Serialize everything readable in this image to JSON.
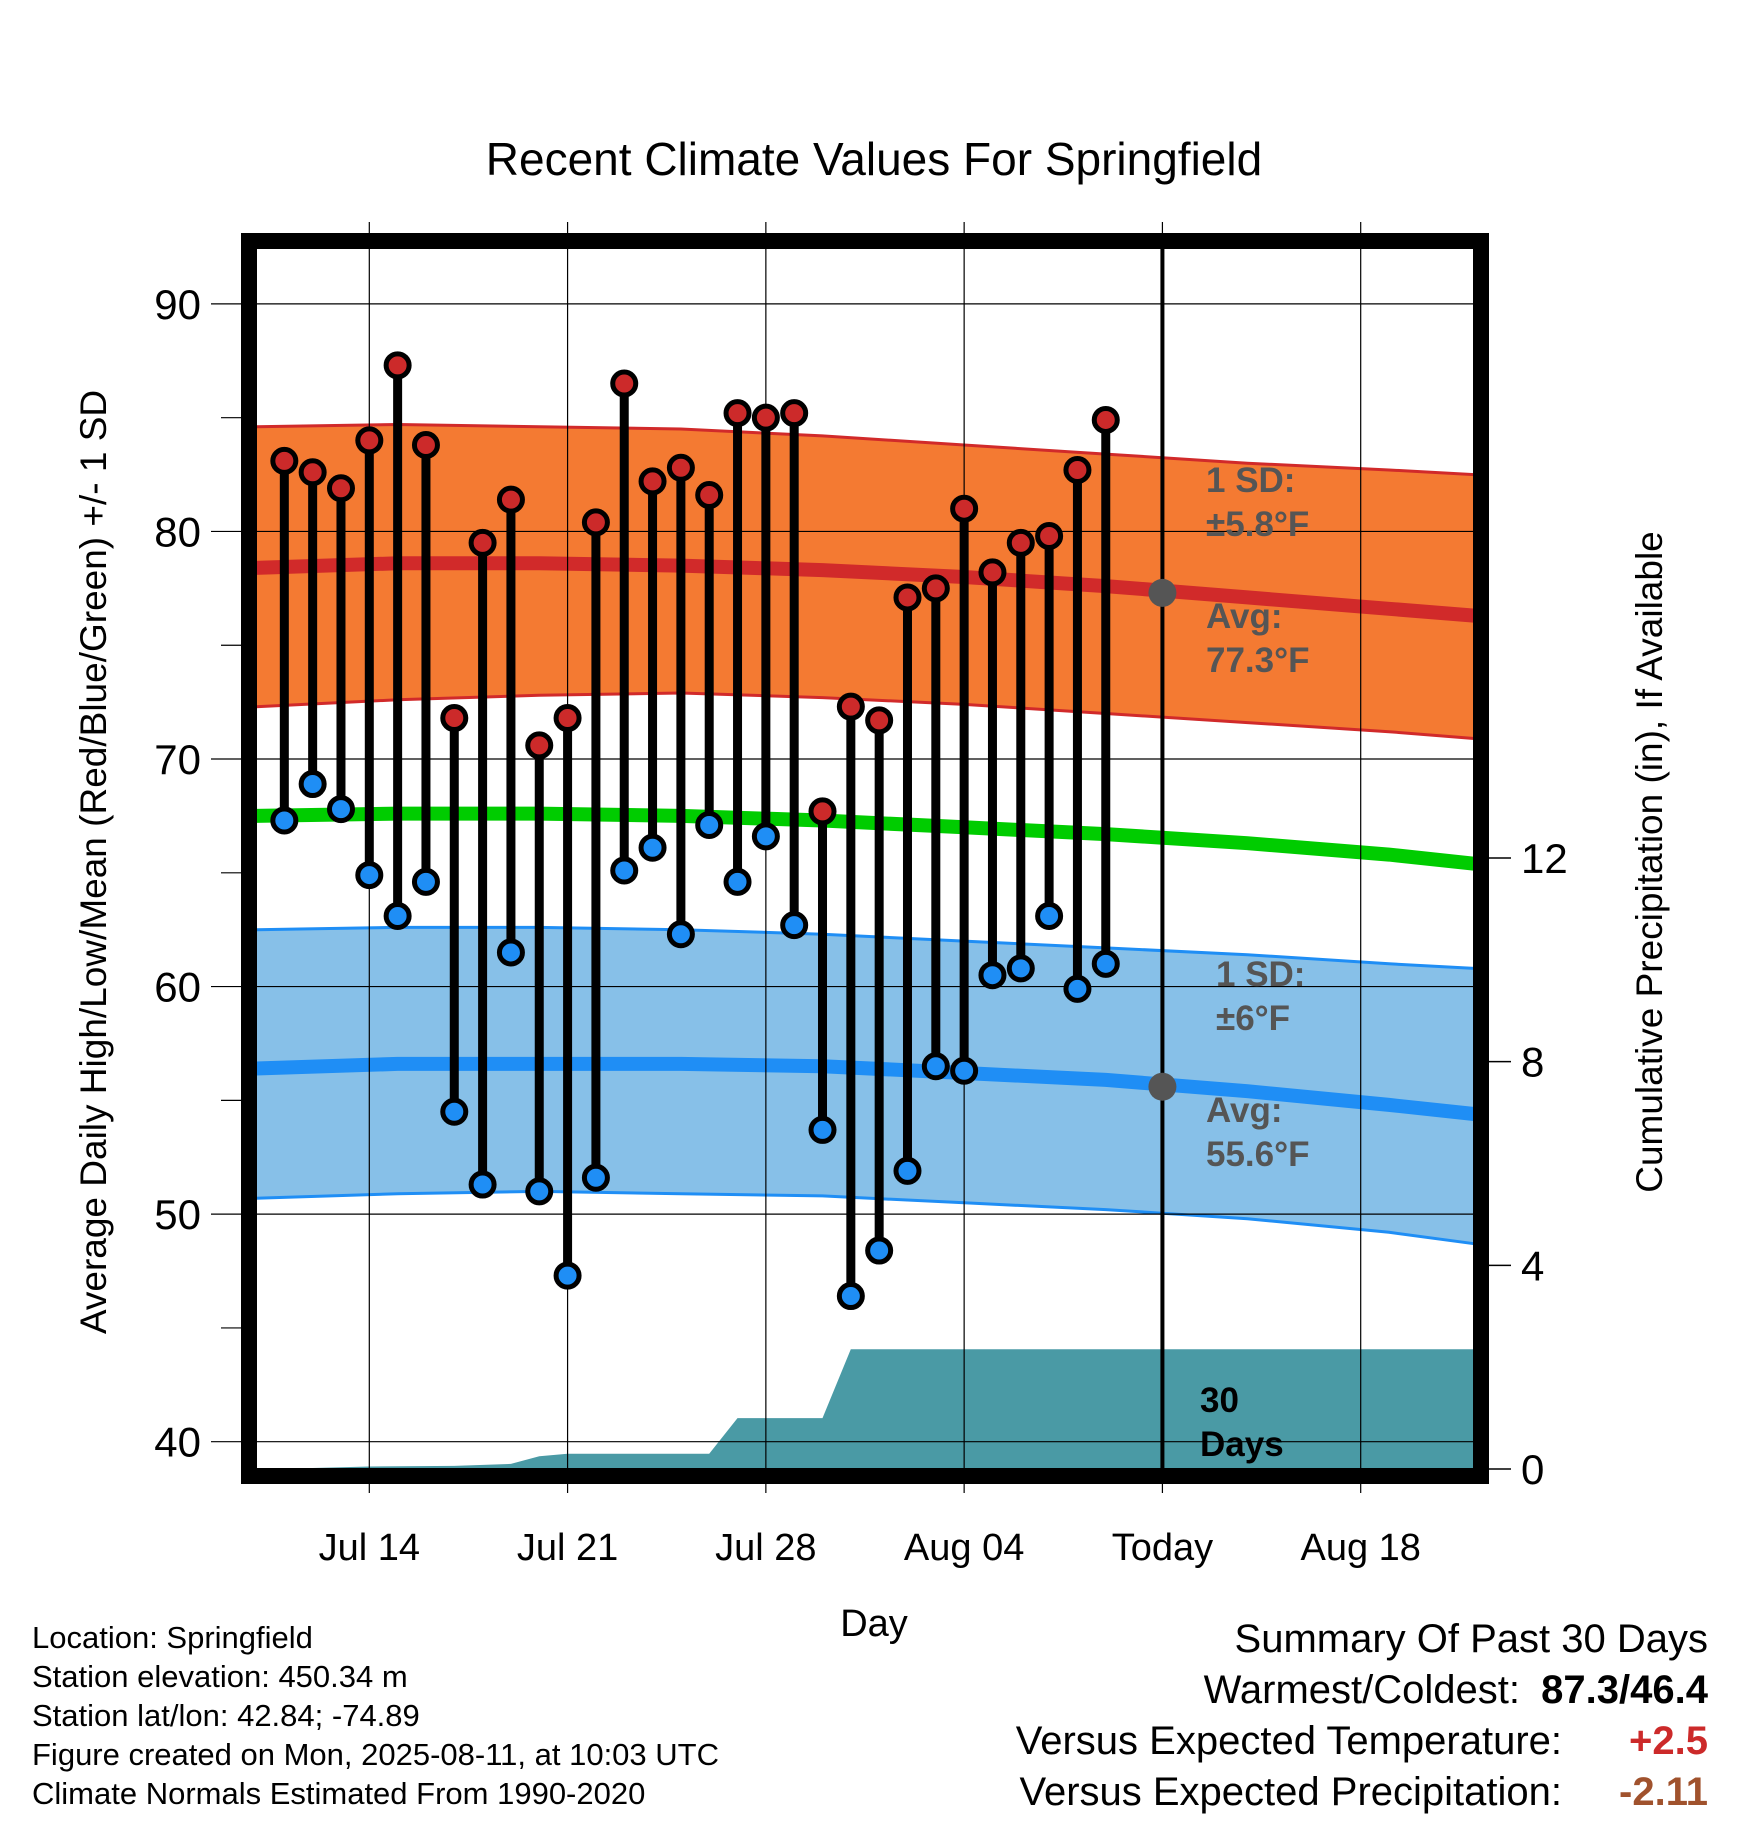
{
  "chart_data": {
    "type": "line",
    "title": "Recent Climate Values For Springfield",
    "xlabel": "Day",
    "ylabel": "Average Daily High/Low/Mean (Red/Blue/Green) +/- 1 SD",
    "y2label": "Cumulative Precipitation (in), If Available",
    "ylim": [
      38.8,
      92.5
    ],
    "y_ticks": [
      40,
      50,
      60,
      70,
      80,
      90
    ],
    "y2lim": [
      0,
      24
    ],
    "y2_ticks": [
      0,
      4,
      8,
      12
    ],
    "x_range": [
      "2025-07-10",
      "2025-08-22"
    ],
    "x_ticks": [
      {
        "date": "2025-07-14",
        "label": "Jul 14"
      },
      {
        "date": "2025-07-21",
        "label": "Jul 21"
      },
      {
        "date": "2025-07-28",
        "label": "Jul 28"
      },
      {
        "date": "2025-08-04",
        "label": "Aug 04"
      },
      {
        "date": "2025-08-11",
        "label": "Today"
      },
      {
        "date": "2025-08-18",
        "label": "Aug 18"
      }
    ],
    "grid": true,
    "colors": {
      "high_band": "#f47a32",
      "high_avg": "#d12a2a",
      "low_band": "#87c0e8",
      "low_avg": "#1f8ef5",
      "mean": "#00cc00",
      "precip": "#4a9aa5",
      "high_marker": "#cc2a2a",
      "low_marker": "#1f8ef5"
    },
    "normals": {
      "dates": [
        "2025-07-10",
        "2025-07-15",
        "2025-07-20",
        "2025-07-25",
        "2025-07-30",
        "2025-08-04",
        "2025-08-09",
        "2025-08-14",
        "2025-08-19",
        "2025-08-22"
      ],
      "high_avg": [
        78.4,
        78.6,
        78.6,
        78.5,
        78.3,
        78.0,
        77.6,
        77.1,
        76.6,
        76.3
      ],
      "high_upper": [
        84.6,
        84.7,
        84.6,
        84.5,
        84.2,
        83.8,
        83.4,
        83.0,
        82.7,
        82.5
      ],
      "high_lower": [
        72.3,
        72.6,
        72.8,
        72.9,
        72.7,
        72.4,
        72.0,
        71.6,
        71.2,
        70.9
      ],
      "mean_avg": [
        67.5,
        67.6,
        67.6,
        67.5,
        67.3,
        67.0,
        66.7,
        66.3,
        65.8,
        65.4
      ],
      "low_avg": [
        56.4,
        56.6,
        56.6,
        56.6,
        56.5,
        56.2,
        55.9,
        55.4,
        54.8,
        54.4
      ],
      "low_upper": [
        62.5,
        62.6,
        62.6,
        62.5,
        62.3,
        62.0,
        61.7,
        61.4,
        61.0,
        60.8
      ],
      "low_lower": [
        50.7,
        50.9,
        51.0,
        50.9,
        50.8,
        50.5,
        50.2,
        49.8,
        49.2,
        48.7
      ]
    },
    "series": [
      {
        "name": "High",
        "dates": [
          "2025-07-11",
          "2025-07-12",
          "2025-07-13",
          "2025-07-14",
          "2025-07-15",
          "2025-07-16",
          "2025-07-17",
          "2025-07-18",
          "2025-07-19",
          "2025-07-20",
          "2025-07-21",
          "2025-07-22",
          "2025-07-23",
          "2025-07-24",
          "2025-07-25",
          "2025-07-26",
          "2025-07-27",
          "2025-07-28",
          "2025-07-29",
          "2025-07-30",
          "2025-07-31",
          "2025-08-01",
          "2025-08-02",
          "2025-08-03",
          "2025-08-04",
          "2025-08-05",
          "2025-08-06",
          "2025-08-07",
          "2025-08-08",
          "2025-08-09",
          "2025-08-10"
        ],
        "values": [
          83.1,
          82.6,
          81.9,
          84.0,
          87.3,
          83.8,
          71.8,
          79.5,
          81.4,
          70.6,
          71.8,
          80.4,
          86.5,
          82.2,
          82.8,
          81.6,
          85.2,
          85.0,
          85.2,
          67.7,
          72.3,
          71.7,
          77.1,
          77.5,
          81.0,
          78.2,
          79.5,
          79.8,
          82.7,
          84.9,
          null
        ]
      },
      {
        "name": "Low",
        "dates": [
          "2025-07-11",
          "2025-07-12",
          "2025-07-13",
          "2025-07-14",
          "2025-07-15",
          "2025-07-16",
          "2025-07-17",
          "2025-07-18",
          "2025-07-19",
          "2025-07-20",
          "2025-07-21",
          "2025-07-22",
          "2025-07-23",
          "2025-07-24",
          "2025-07-25",
          "2025-07-26",
          "2025-07-27",
          "2025-07-28",
          "2025-07-29",
          "2025-07-30",
          "2025-07-31",
          "2025-08-01",
          "2025-08-02",
          "2025-08-03",
          "2025-08-04",
          "2025-08-05",
          "2025-08-06",
          "2025-08-07",
          "2025-08-08",
          "2025-08-09",
          "2025-08-10"
        ],
        "values": [
          67.3,
          68.9,
          67.8,
          64.9,
          63.1,
          64.6,
          54.5,
          51.3,
          61.5,
          51.0,
          47.3,
          51.6,
          65.1,
          66.1,
          62.3,
          67.1,
          64.6,
          66.6,
          62.7,
          53.7,
          46.4,
          48.4,
          51.9,
          56.5,
          56.3,
          60.5,
          60.8,
          63.1,
          59.9,
          61.0,
          null
        ]
      }
    ],
    "precip": {
      "dates": [
        "2025-07-10",
        "2025-07-12",
        "2025-07-14",
        "2025-07-17",
        "2025-07-19",
        "2025-07-20",
        "2025-07-21",
        "2025-07-25",
        "2025-07-26",
        "2025-07-27",
        "2025-07-29",
        "2025-07-30",
        "2025-07-31",
        "2025-08-22"
      ],
      "values": [
        0,
        0.02,
        0.05,
        0.06,
        0.1,
        0.25,
        0.3,
        0.3,
        0.3,
        1.0,
        1.0,
        1.0,
        2.35,
        2.35
      ]
    },
    "annotations": {
      "high_sd": {
        "line1": "1 SD:",
        "line2": "±5.8°F"
      },
      "high_avg": {
        "line1": "Avg:",
        "line2": "77.3°F",
        "value": 77.3
      },
      "low_sd": {
        "line1": "1 SD:",
        "line2": "±6°F"
      },
      "low_avg": {
        "line1": "Avg:",
        "line2": "55.6°F",
        "value": 55.6
      },
      "days": {
        "line1": "30",
        "line2": "Days"
      }
    }
  },
  "footer": {
    "location": "Location: Springfield",
    "elevation": "Station elevation: 450.34 m",
    "latlon": "Station lat/lon: 42.84; -74.89",
    "created": "Figure created on Mon, 2025-08-11, at 10:03 UTC",
    "normals": "Climate Normals Estimated From 1990-2020"
  },
  "summary": {
    "title": "Summary Of Past 30 Days",
    "warmest_coldest_label": "Warmest/Coldest:",
    "warmest_coldest_value": "87.3/46.4",
    "temp_label": "Versus Expected Temperature:",
    "temp_value": "+2.5",
    "temp_color": "#cc2a2a",
    "precip_label": "Versus Expected Precipitation:",
    "precip_value": "-2.11",
    "precip_color": "#a0522d"
  }
}
